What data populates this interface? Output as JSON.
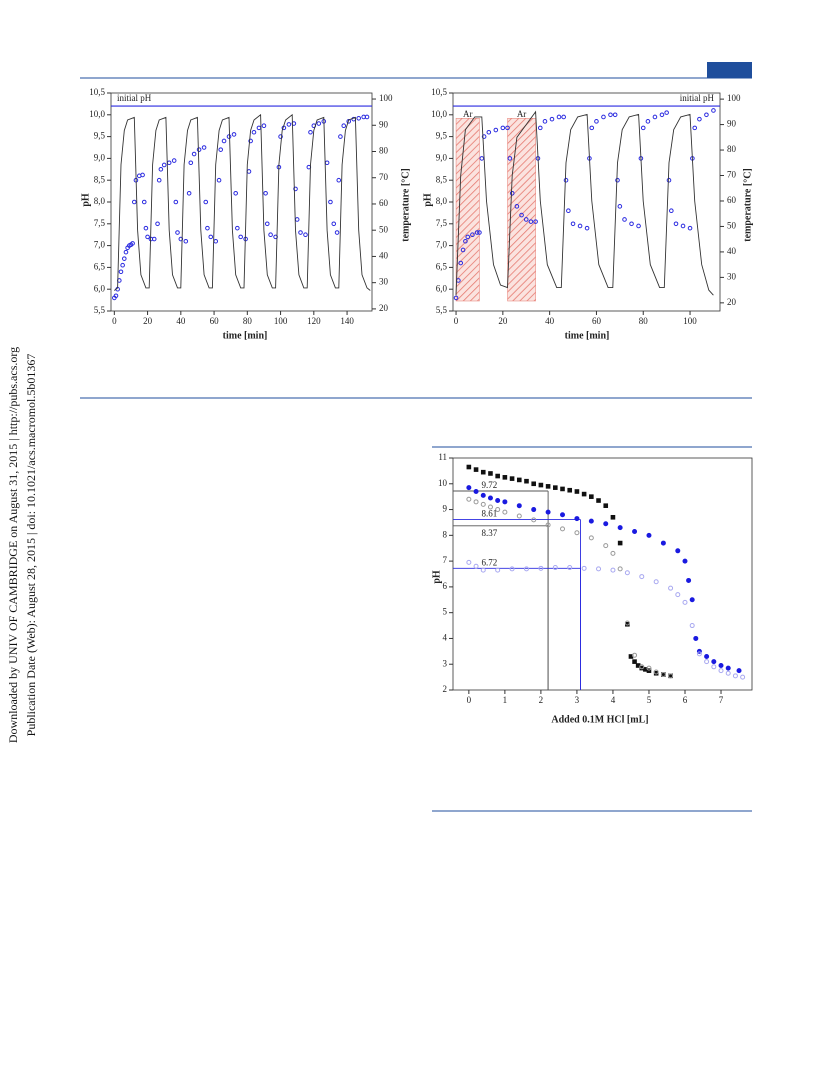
{
  "watermark": [
    "Downloaded by UNIV OF CAMBRIDGE on August 31, 2015 | http://pubs.acs.org",
    "Publication Date (Web): August 28, 2015 | doi: 10.1021/acs.macromol.5b01367"
  ],
  "chart_data": [
    {
      "type": "line",
      "x_label": "time [min]",
      "y_label": "pH",
      "y2_label": "temperature [°C]",
      "xlim": [
        -2,
        155
      ],
      "ylim": [
        5.5,
        10.5
      ],
      "y2lim": [
        19.2,
        102.3
      ],
      "xticks": [
        0,
        20,
        40,
        60,
        80,
        100,
        120,
        140
      ],
      "yticks": [
        {
          "value": 5.5,
          "label": "5,5"
        },
        {
          "value": 6,
          "label": "6,0"
        },
        {
          "value": 6.5,
          "label": "6,5"
        },
        {
          "value": 7,
          "label": "7,0"
        },
        {
          "value": 7.5,
          "label": "7,5"
        },
        {
          "value": 8,
          "label": "8,0"
        },
        {
          "value": 8.5,
          "label": "8,5"
        },
        {
          "value": 9,
          "label": "9,0"
        },
        {
          "value": 9.5,
          "label": "9,5"
        },
        {
          "value": 10,
          "label": "10,0"
        },
        {
          "value": 10.5,
          "label": "10,5"
        }
      ],
      "y2ticks": [
        20,
        30,
        40,
        50,
        60,
        70,
        80,
        90,
        100
      ],
      "reference_line": {
        "label": "initial pH",
        "value": 10.2,
        "color": "#2a2ae0"
      },
      "series": [
        {
          "color": "#2a2ae0",
          "markers": true,
          "x": [
            0,
            1,
            2,
            3,
            4,
            5,
            6,
            7,
            8,
            9,
            10,
            11,
            12,
            13,
            15,
            17,
            18,
            19,
            20,
            22,
            24,
            26,
            27,
            28,
            30,
            33,
            36,
            37,
            38,
            40,
            43,
            45,
            46,
            48,
            51,
            54,
            55,
            56,
            58,
            61,
            63,
            64,
            66,
            69,
            72,
            73,
            74,
            76,
            79,
            81,
            82,
            84,
            87,
            90,
            91,
            92,
            94,
            97,
            99,
            100,
            102,
            105,
            108,
            109,
            110,
            112,
            115,
            117,
            118,
            120,
            123,
            126,
            128,
            130,
            132,
            134,
            135,
            136,
            138,
            141,
            144,
            147,
            150,
            152
          ],
          "values": [
            5.8,
            5.85,
            6.0,
            6.2,
            6.4,
            6.55,
            6.7,
            6.85,
            6.95,
            7.0,
            7.02,
            7.05,
            8.0,
            8.5,
            8.6,
            8.62,
            8.0,
            7.4,
            7.2,
            7.15,
            7.15,
            7.5,
            8.5,
            8.75,
            8.85,
            8.9,
            8.95,
            8.0,
            7.3,
            7.15,
            7.1,
            8.2,
            8.9,
            9.1,
            9.2,
            9.25,
            8.0,
            7.4,
            7.2,
            7.1,
            8.5,
            9.2,
            9.4,
            9.5,
            9.55,
            8.2,
            7.4,
            7.2,
            7.15,
            8.7,
            9.4,
            9.6,
            9.7,
            9.75,
            8.2,
            7.5,
            7.25,
            7.2,
            8.8,
            9.5,
            9.7,
            9.78,
            9.8,
            8.3,
            7.6,
            7.3,
            7.25,
            8.8,
            9.6,
            9.75,
            9.8,
            9.85,
            8.9,
            8.0,
            7.5,
            7.3,
            8.5,
            9.5,
            9.75,
            9.85,
            9.9,
            9.92,
            9.95,
            9.95
          ]
        },
        {
          "color": "#333333",
          "markers": false,
          "axis": "y2",
          "x": [
            0,
            2,
            4,
            6,
            8,
            12,
            14,
            16,
            19,
            21,
            23,
            25,
            27,
            31,
            33,
            35,
            38,
            40,
            42,
            44,
            46,
            50,
            52,
            54,
            57,
            59,
            61,
            63,
            65,
            69,
            71,
            73,
            76,
            78,
            80,
            82,
            84,
            88,
            90,
            92,
            95,
            97,
            99,
            101,
            103,
            107,
            109,
            111,
            114,
            116,
            118,
            120,
            122,
            126,
            128,
            130,
            133,
            135,
            137,
            139,
            141,
            145,
            147,
            149,
            152,
            154
          ],
          "values": [
            27,
            28,
            75,
            88,
            92,
            93,
            50,
            33,
            28,
            28,
            75,
            88,
            92,
            93,
            50,
            33,
            28,
            28,
            75,
            88,
            92,
            93,
            50,
            33,
            28,
            28,
            75,
            88,
            92,
            93,
            50,
            33,
            28,
            28,
            75,
            88,
            92,
            94,
            50,
            33,
            28,
            28,
            75,
            88,
            92,
            94,
            50,
            33,
            28,
            28,
            75,
            88,
            92,
            93,
            50,
            33,
            28,
            28,
            75,
            88,
            92,
            93,
            50,
            33,
            28,
            27
          ]
        }
      ]
    },
    {
      "type": "line",
      "x_label": "time [min]",
      "y_label": "pH",
      "y2_label": "temperature [°C]",
      "xlim": [
        -1.3,
        112.8
      ],
      "ylim": [
        5.5,
        10.5
      ],
      "y2lim": [
        16.8,
        102.4
      ],
      "xticks": [
        0,
        20,
        40,
        60,
        80,
        100
      ],
      "yticks": [
        {
          "value": 5.5,
          "label": "5,5"
        },
        {
          "value": 6,
          "label": "6,0"
        },
        {
          "value": 6.5,
          "label": "6,5"
        },
        {
          "value": 7,
          "label": "7,0"
        },
        {
          "value": 7.5,
          "label": "7,5"
        },
        {
          "value": 8,
          "label": "8,0"
        },
        {
          "value": 8.5,
          "label": "8,5"
        },
        {
          "value": 9,
          "label": "9,0"
        },
        {
          "value": 9.5,
          "label": "9,5"
        },
        {
          "value": 10,
          "label": "10,0"
        },
        {
          "value": 10.5,
          "label": "10,5"
        }
      ],
      "y2ticks": [
        20,
        30,
        40,
        50,
        60,
        70,
        80,
        90,
        100
      ],
      "reference_line": {
        "label": "initial pH",
        "value": 10.2,
        "color": "#2a2ae0"
      },
      "shaded_regions": [
        {
          "label": "Ar",
          "x": [
            0,
            10
          ]
        },
        {
          "label": "Ar",
          "x": [
            22,
            34
          ]
        }
      ],
      "series": [
        {
          "color": "#2a2ae0",
          "markers": true,
          "x": [
            0,
            1,
            2,
            3,
            4,
            5,
            7,
            9,
            10,
            11,
            12,
            14,
            17,
            20,
            22,
            23,
            24,
            26,
            28,
            30,
            32,
            34,
            35,
            36,
            38,
            41,
            44,
            46,
            47,
            48,
            50,
            53,
            56,
            57,
            58,
            60,
            63,
            66,
            68,
            69,
            70,
            72,
            75,
            78,
            79,
            80,
            82,
            85,
            88,
            90,
            91,
            92,
            94,
            97,
            100,
            101,
            102,
            104,
            107,
            110
          ],
          "values": [
            5.8,
            6.2,
            6.6,
            6.9,
            7.1,
            7.2,
            7.25,
            7.3,
            7.3,
            9.0,
            9.5,
            9.6,
            9.65,
            9.7,
            9.7,
            9.0,
            8.2,
            7.9,
            7.7,
            7.6,
            7.55,
            7.55,
            9.0,
            9.7,
            9.85,
            9.9,
            9.95,
            9.95,
            8.5,
            7.8,
            7.5,
            7.45,
            7.4,
            9.0,
            9.7,
            9.85,
            9.95,
            10.0,
            10.0,
            8.5,
            7.9,
            7.6,
            7.5,
            7.45,
            9.0,
            9.7,
            9.85,
            9.95,
            10.0,
            10.05,
            8.5,
            7.8,
            7.5,
            7.45,
            7.4,
            9.0,
            9.7,
            9.9,
            10.0,
            10.1
          ]
        },
        {
          "color": "#333333",
          "markers": false,
          "axis": "y2",
          "x": [
            0,
            2,
            4,
            8,
            11,
            13,
            16,
            19,
            22,
            24,
            26,
            30,
            34,
            36,
            39,
            43,
            45,
            47,
            49,
            52,
            56,
            58,
            61,
            65,
            67,
            69,
            71,
            74,
            78,
            80,
            83,
            87,
            89,
            91,
            93,
            96,
            100,
            102,
            105,
            108,
            110
          ],
          "values": [
            23,
            70,
            88,
            93,
            93,
            60,
            35,
            27,
            26,
            70,
            85,
            90,
            95,
            60,
            35,
            26,
            26,
            75,
            88,
            93,
            94,
            60,
            35,
            26,
            26,
            75,
            88,
            93,
            94,
            60,
            35,
            26,
            26,
            75,
            88,
            93,
            94,
            60,
            35,
            25,
            23
          ]
        }
      ]
    },
    {
      "type": "scatter",
      "x_label": "Added 0.1M HCl [mL]",
      "y_label": "pH",
      "xlim": [
        -0.44,
        7.86
      ],
      "ylim": [
        2,
        11
      ],
      "xticks": [
        0,
        1,
        2,
        3,
        4,
        5,
        6,
        7
      ],
      "yticks": [
        2,
        3,
        4,
        5,
        6,
        7,
        8,
        9,
        10,
        11
      ],
      "references": [
        {
          "value": 9.72,
          "x": 2.2,
          "color": "#555555"
        },
        {
          "value": 8.61,
          "x": 3.1,
          "color": "#2a2ae0"
        },
        {
          "value": 8.37,
          "x": 2.2,
          "color": "#555555"
        },
        {
          "value": 6.72,
          "x": 3.1,
          "color": "#2a2ae0"
        }
      ],
      "series": [
        {
          "color": "#111111",
          "marker": "square",
          "filled": true,
          "x": [
            0,
            0.2,
            0.4,
            0.6,
            0.8,
            1,
            1.2,
            1.4,
            1.6,
            1.8,
            2,
            2.2,
            2.4,
            2.6,
            2.8,
            3,
            3.2,
            3.4,
            3.6,
            3.8,
            4,
            4.2,
            4.4,
            4.5,
            4.6,
            4.7,
            4.8,
            4.9,
            5,
            5.2,
            5.4,
            5.6
          ],
          "values": [
            10.65,
            10.55,
            10.45,
            10.4,
            10.3,
            10.25,
            10.2,
            10.15,
            10.1,
            10.0,
            9.95,
            9.9,
            9.85,
            9.8,
            9.75,
            9.7,
            9.6,
            9.5,
            9.35,
            9.15,
            8.7,
            7.7,
            4.55,
            3.3,
            3.1,
            2.95,
            2.85,
            2.8,
            2.75,
            2.65,
            2.6,
            2.55
          ]
        },
        {
          "color": "#999999",
          "marker": "circle",
          "filled": false,
          "x": [
            0,
            0.2,
            0.4,
            0.6,
            0.8,
            1,
            1.4,
            1.8,
            2.2,
            2.6,
            3,
            3.4,
            3.8,
            4,
            4.2,
            4.4,
            4.6,
            4.8,
            5,
            5.2,
            5.4,
            5.6
          ],
          "values": [
            9.4,
            9.3,
            9.2,
            9.1,
            9.0,
            8.9,
            8.75,
            8.6,
            8.4,
            8.25,
            8.1,
            7.9,
            7.6,
            7.3,
            6.7,
            4.6,
            3.35,
            2.9,
            2.85,
            2.7,
            2.6,
            2.55
          ]
        },
        {
          "color": "#1a1ae0",
          "marker": "circle",
          "filled": true,
          "x": [
            0,
            0.2,
            0.4,
            0.6,
            0.8,
            1,
            1.4,
            1.8,
            2.2,
            2.6,
            3,
            3.4,
            3.8,
            4.2,
            4.6,
            5,
            5.4,
            5.8,
            6,
            6.1,
            6.2,
            6.3,
            6.4,
            6.6,
            6.8,
            7,
            7.2,
            7.5
          ],
          "values": [
            9.85,
            9.7,
            9.55,
            9.45,
            9.35,
            9.3,
            9.15,
            9.0,
            8.9,
            8.8,
            8.65,
            8.55,
            8.45,
            8.3,
            8.15,
            8.0,
            7.7,
            7.4,
            7.0,
            6.25,
            5.5,
            4.0,
            3.5,
            3.3,
            3.1,
            2.95,
            2.85,
            2.75
          ]
        },
        {
          "color": "#a8a8f0",
          "marker": "circle",
          "filled": false,
          "x": [
            0,
            0.2,
            0.4,
            0.8,
            1.2,
            1.6,
            2,
            2.4,
            2.8,
            3.2,
            3.6,
            4,
            4.4,
            4.8,
            5.2,
            5.6,
            5.8,
            6,
            6.2,
            6.4,
            6.6,
            6.8,
            7,
            7.2,
            7.4,
            7.6
          ],
          "values": [
            6.95,
            6.8,
            6.65,
            6.65,
            6.7,
            6.7,
            6.72,
            6.75,
            6.75,
            6.72,
            6.7,
            6.65,
            6.55,
            6.4,
            6.2,
            5.95,
            5.7,
            5.4,
            4.5,
            3.4,
            3.1,
            2.9,
            2.75,
            2.65,
            2.55,
            2.5
          ]
        }
      ]
    }
  ]
}
